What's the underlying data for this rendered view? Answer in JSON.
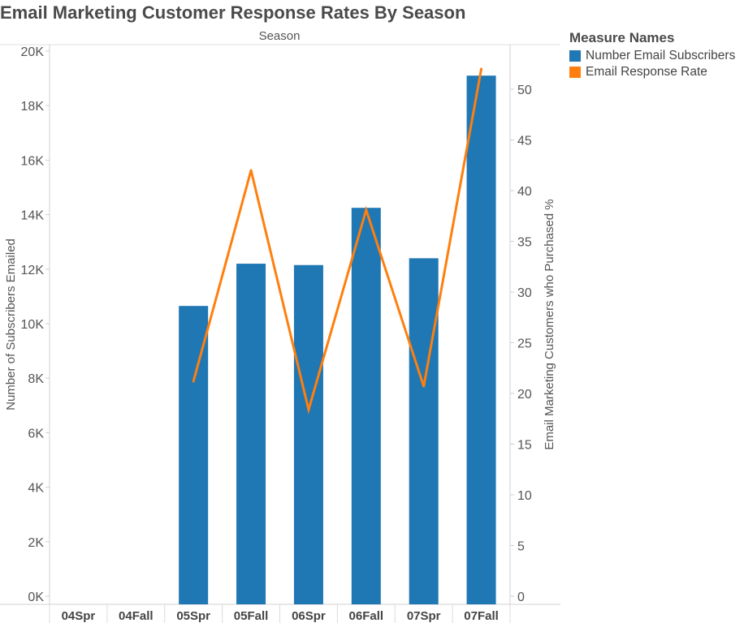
{
  "title": "Email Marketing Customer Response Rates By Season",
  "legend": {
    "title": "Measure Names",
    "items": [
      {
        "label": "Number Email Subscribers",
        "color": "#1f77b4"
      },
      {
        "label": "Email Response Rate",
        "color": "#ff7f0e"
      }
    ]
  },
  "chart_data": {
    "type": "bar",
    "title": "Email Marketing Customer Response Rates By Season",
    "xlabel": "Season",
    "ylabel": "Number of Subscribers Emailed",
    "y2label": "Email Marketing Customers who Purchased %",
    "categories": [
      "04Spr",
      "04Fall",
      "05Spr",
      "05Fall",
      "06Spr",
      "06Fall",
      "07Spr",
      "07Fall"
    ],
    "ylim": [
      0,
      20000
    ],
    "y_ticks": [
      0,
      2000,
      4000,
      6000,
      8000,
      10000,
      12000,
      14000,
      16000,
      18000,
      20000
    ],
    "y_tick_labels": [
      "0K",
      "2K",
      "4K",
      "6K",
      "8K",
      "10K",
      "12K",
      "14K",
      "16K",
      "18K",
      "20K"
    ],
    "y2lim": [
      0,
      53.5
    ],
    "y2_ticks": [
      0,
      5,
      10,
      15,
      20,
      25,
      30,
      35,
      40,
      45,
      50
    ],
    "y2_tick_labels": [
      "0",
      "5",
      "10",
      "15",
      "20",
      "25",
      "30",
      "35",
      "40",
      "45",
      "50"
    ],
    "grid": false,
    "legend_position": "top-right",
    "series": [
      {
        "name": "Number Email Subscribers",
        "type": "bar",
        "axis": "left",
        "color": "#1f77b4",
        "values": [
          null,
          null,
          10650,
          12200,
          12150,
          14250,
          12400,
          19100
        ]
      },
      {
        "name": "Email Response Rate",
        "type": "line",
        "axis": "right",
        "color": "#ff7f0e",
        "values": [
          null,
          null,
          21.2,
          42.0,
          18.4,
          38.1,
          20.7,
          52.0
        ]
      }
    ]
  }
}
